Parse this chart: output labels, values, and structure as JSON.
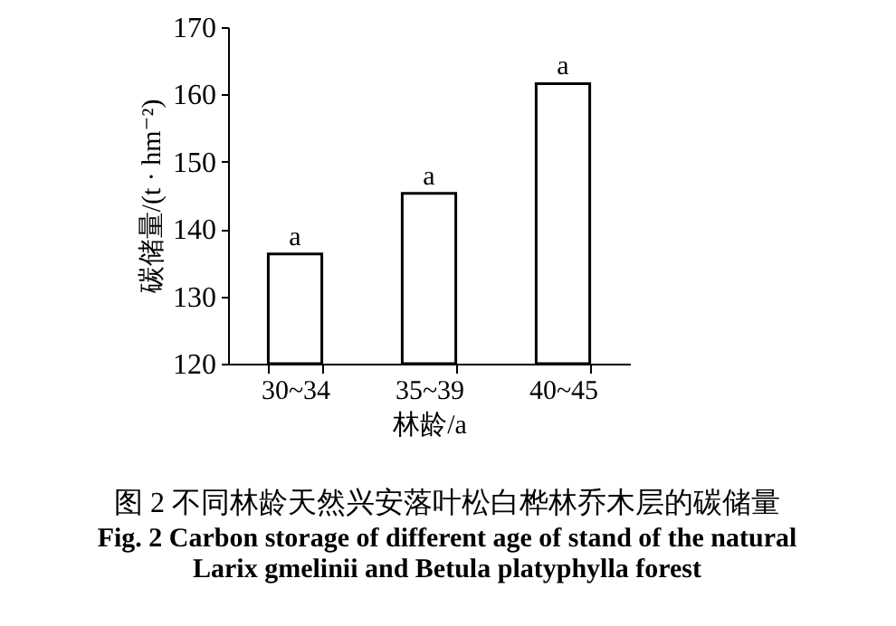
{
  "chart_data": {
    "type": "bar",
    "title": "图 2    不同林龄天然兴安落叶松白桦林乔木层的碳储量",
    "annotations": [
      "Fig. 2    Carbon storage of different age of stand of the natural",
      "Larix gmelinii and Betula platyphylla forest"
    ],
    "xlabel": "林龄/a",
    "ylabel": "碳储量/(t · hm⁻²)",
    "categories": [
      "30~34",
      "35~39",
      "40~45"
    ],
    "values": [
      136.3,
      145.3,
      161.6
    ],
    "value_labels": [
      "a",
      "a",
      "a"
    ],
    "color": "#ffffff",
    "ylim": [
      120,
      170
    ],
    "yticks": [
      120,
      130,
      140,
      150,
      160,
      170
    ],
    "grid": false
  }
}
